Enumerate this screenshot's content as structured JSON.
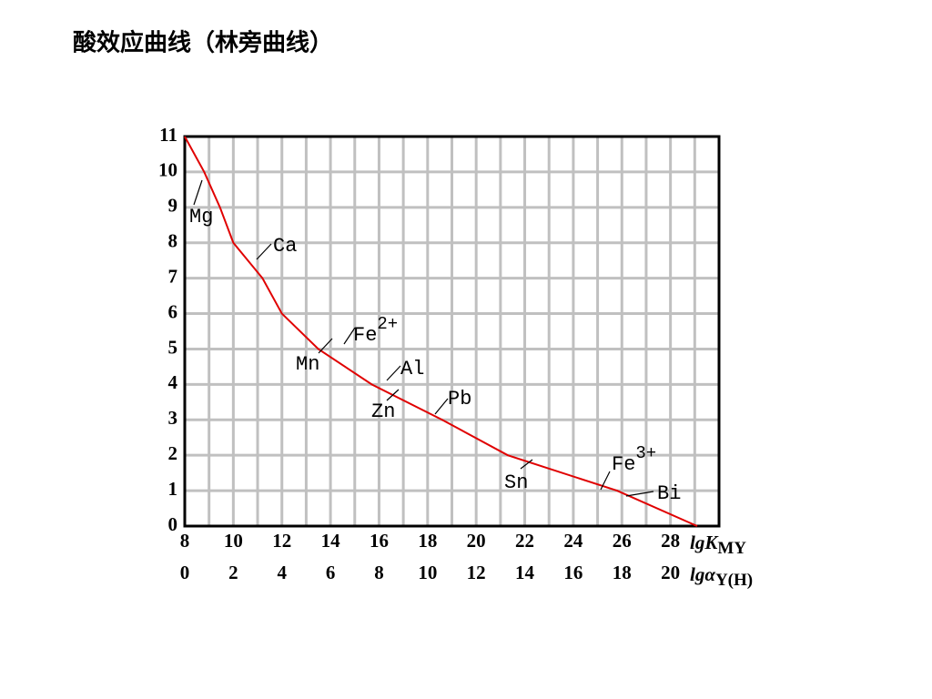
{
  "chart_data": {
    "type": "line",
    "title": "酸效应曲线（林旁曲线）",
    "x": [
      8,
      8.8,
      9.45,
      10.0,
      11.2,
      12.0,
      13.5,
      15.7,
      18.6,
      21.3,
      25.8,
      29.1
    ],
    "series": [
      {
        "name": "lgK",
        "color": "#e00000",
        "values": [
          11,
          10,
          9,
          8,
          7,
          6,
          5,
          4,
          3,
          2,
          1,
          0
        ]
      }
    ],
    "xlim": [
      8,
      30
    ],
    "xticks": [
      8,
      10,
      12,
      14,
      16,
      18,
      20,
      22,
      24,
      26,
      28
    ],
    "minor_xticks": [
      9,
      11,
      13,
      15,
      17,
      19,
      21,
      23,
      25,
      27,
      29
    ],
    "x2lim": [
      0,
      22
    ],
    "x2ticks": [
      0,
      2,
      4,
      6,
      8,
      10,
      12,
      14,
      16,
      18,
      20
    ],
    "ylim": [
      0,
      11
    ],
    "yticks": [
      0,
      1,
      2,
      3,
      4,
      5,
      6,
      7,
      8,
      9,
      10,
      11
    ],
    "xlabel": "lgK",
    "xlabel_sub": "MY",
    "x2label": "lgα",
    "x2label_sub": "Y(H)",
    "grid": true,
    "annotations": [
      {
        "text": "Mg"
      },
      {
        "text": "Ca"
      },
      {
        "text": "Fe",
        "sup": "2+"
      },
      {
        "text": "Mn"
      },
      {
        "text": "Al"
      },
      {
        "text": "Zn"
      },
      {
        "text": "Pb"
      },
      {
        "text": "Sn"
      },
      {
        "text": "Fe",
        "sup": "3+"
      },
      {
        "text": "Bi"
      }
    ]
  }
}
